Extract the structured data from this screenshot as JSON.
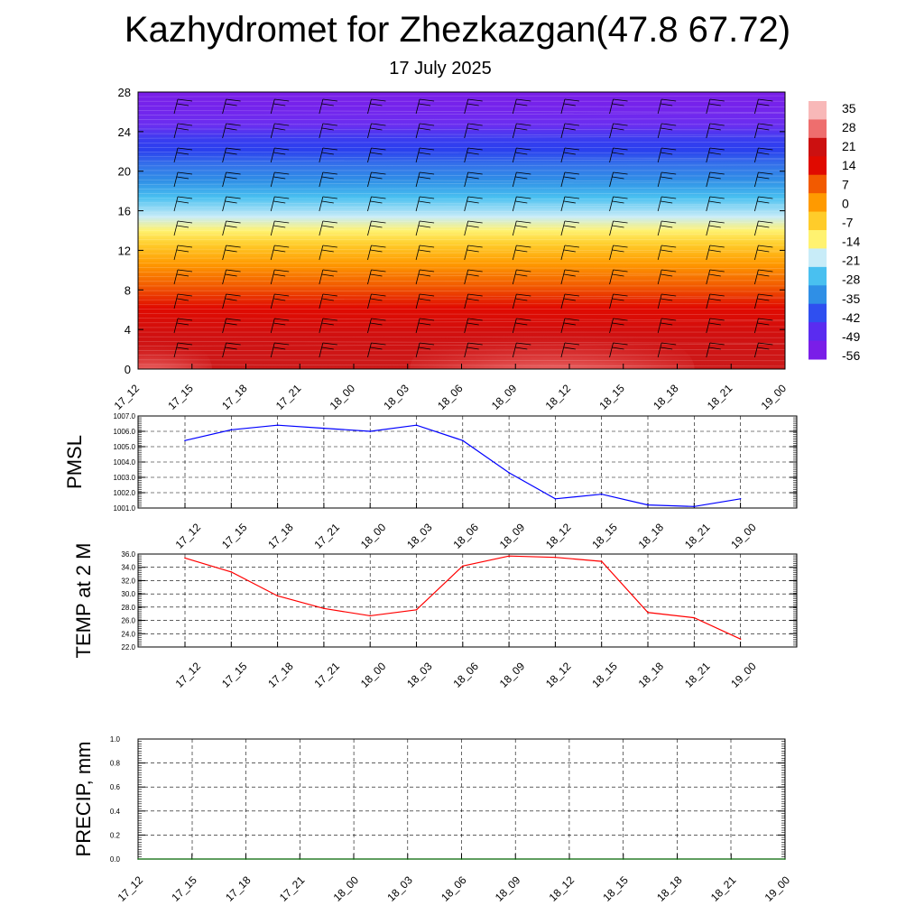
{
  "title": "Kazhydromet for Zhezkazgan(47.8 67.72)",
  "subtitle": "17 July 2025",
  "colors": {
    "pmsl_line": "#0000ff",
    "temp_line": "#ff0000",
    "precip_line": "#006400",
    "colorbar": [
      "#7a1ee8",
      "#5a2cf0",
      "#2f4ff0",
      "#2f8fe6",
      "#49c0f0",
      "#c8ecf8",
      "#fff270",
      "#ffcc2a",
      "#ff9a00",
      "#f25a00",
      "#e00a00",
      "#cc1010",
      "#ee6e6e",
      "#f8b8b8"
    ]
  },
  "chart_data": [
    {
      "type": "heatmap",
      "title": "",
      "ylabel": "",
      "ylim": [
        0,
        28
      ],
      "yticks": [
        "0",
        "4",
        "8",
        "12",
        "16",
        "20",
        "24",
        "28"
      ],
      "xticks": [
        "17_12",
        "17_15",
        "17_18",
        "17_21",
        "18_00",
        "18_03",
        "18_06",
        "18_09",
        "18_12",
        "18_15",
        "18_18",
        "18_21",
        "19_00"
      ],
      "colorbar_labels": [
        "35",
        "28",
        "21",
        "14",
        "7",
        "0",
        "-7",
        "-14",
        "-21",
        "-28",
        "-35",
        "-42",
        "-49",
        "-56"
      ],
      "description_levels_note_free": true,
      "wind_barbs": true
    },
    {
      "type": "line",
      "ylabel": "PMSL",
      "x": [
        "17_12",
        "17_15",
        "17_18",
        "17_21",
        "18_00",
        "18_03",
        "18_06",
        "18_09",
        "18_12",
        "18_15",
        "18_18",
        "18_21",
        "19_00"
      ],
      "values": [
        1005.4,
        1006.1,
        1006.4,
        1006.2,
        1006.0,
        1006.4,
        1005.4,
        1003.3,
        1001.6,
        1001.9,
        1001.2,
        1001.1,
        1001.6
      ],
      "ylim": [
        1001.0,
        1007.0
      ],
      "yticks": [
        "1001.0",
        "1002.0",
        "1003.0",
        "1004.0",
        "1005.0",
        "1006.0",
        "1007.0"
      ],
      "grid": true
    },
    {
      "type": "line",
      "ylabel": "TEMP at 2 M",
      "x": [
        "17_12",
        "17_15",
        "17_18",
        "17_21",
        "18_00",
        "18_03",
        "18_06",
        "18_09",
        "18_12",
        "18_15",
        "18_18",
        "18_21",
        "19_00"
      ],
      "values": [
        35.4,
        33.3,
        29.7,
        27.8,
        26.7,
        27.6,
        34.2,
        35.7,
        35.5,
        34.9,
        27.2,
        26.4,
        23.2
      ],
      "ylim": [
        22.0,
        36.0
      ],
      "yticks": [
        "22.0",
        "24.0",
        "26.0",
        "28.0",
        "30.0",
        "32.0",
        "34.0",
        "36.0"
      ],
      "grid": true
    },
    {
      "type": "line",
      "ylabel": "PRECIP, mm",
      "x": [
        "17_12",
        "17_15",
        "17_18",
        "17_21",
        "18_00",
        "18_03",
        "18_06",
        "18_09",
        "18_12",
        "18_15",
        "18_18",
        "18_21",
        "19_00"
      ],
      "values": [
        0,
        0,
        0,
        0,
        0,
        0,
        0,
        0,
        0,
        0,
        0,
        0,
        0
      ],
      "ylim": [
        0.0,
        1.0
      ],
      "yticks": [
        "0.0",
        "0.2",
        "0.4",
        "0.6",
        "0.8",
        "1.0"
      ],
      "grid": true
    }
  ]
}
